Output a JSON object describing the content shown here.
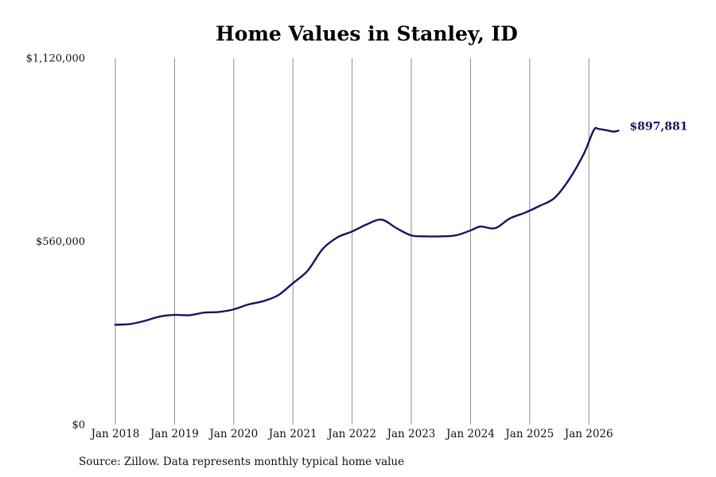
{
  "chart_data": {
    "type": "line",
    "title": "Home Values in Stanley, ID",
    "xlabel": "",
    "ylabel": "",
    "x_ticks": [
      "Jan 2018",
      "Jan 2019",
      "Jan 2020",
      "Jan 2021",
      "Jan 2022",
      "Jan 2023",
      "Jan 2024",
      "Jan 2025",
      "Jan 2026"
    ],
    "y_ticks": [
      "$0",
      "$560,000",
      "$1,120,000"
    ],
    "y_tick_values": [
      0,
      560000,
      1120000
    ],
    "ylim": [
      0,
      1120000
    ],
    "xlim": [
      "2018-01",
      "2026-07"
    ],
    "grid": "vertical gridlines at each January",
    "line_color": "#15155e",
    "end_label": "$897,881",
    "series": [
      {
        "x": [
          "2018-01",
          "2018-04",
          "2018-07",
          "2018-10",
          "2019-01",
          "2019-04",
          "2019-07",
          "2019-10",
          "2020-01",
          "2020-04",
          "2020-07",
          "2020-10",
          "2021-01",
          "2021-04",
          "2021-07",
          "2021-10",
          "2022-01",
          "2022-04",
          "2022-07",
          "2022-10",
          "2023-01",
          "2023-04",
          "2023-07",
          "2023-10",
          "2024-01",
          "2024-03",
          "2024-06",
          "2024-09",
          "2024-12",
          "2025-03",
          "2025-06",
          "2025-09",
          "2025-12",
          "2026-02",
          "2026-03",
          "2026-05",
          "2026-06",
          "2026-07"
        ],
        "values": [
          305000,
          307000,
          317000,
          330000,
          335000,
          334000,
          342000,
          344000,
          352000,
          367000,
          377000,
          395000,
          432000,
          470000,
          536000,
          572000,
          590000,
          612000,
          626000,
          600000,
          578000,
          575000,
          575000,
          578000,
          593000,
          605000,
          600000,
          630000,
          647000,
          668000,
          692000,
          749000,
          828000,
          900000,
          903000,
          898000,
          895000,
          897881
        ]
      }
    ]
  },
  "source": "Source: Zillow. Data represents monthly typical home value"
}
